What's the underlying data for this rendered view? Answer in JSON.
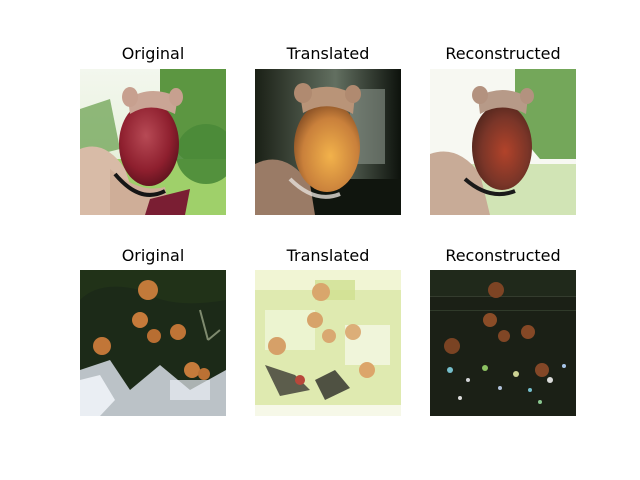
{
  "figure": {
    "rows": [
      {
        "titles": [
          "Original",
          "Translated",
          "Reconstructed"
        ],
        "images": [
          {
            "subject": "hand-holding-red-apple",
            "palette": {
              "sky": "#e9f1df",
              "trees": "#5f9a45",
              "grass": "#9fd06a",
              "apple": "#8e1f2e",
              "skin": "#d6b6a3"
            }
          },
          {
            "subject": "hand-holding-orange-apple-dark",
            "palette": {
              "bg": "#0c0f0b",
              "wall": "#6a7466",
              "apple": "#e08a3b",
              "skin": "#b78e72"
            }
          },
          {
            "subject": "hand-holding-red-apple-reconstructed",
            "palette": {
              "sky": "#f7f8f2",
              "trees": "#7aa95e",
              "grass": "#c4dba4",
              "apple": "#8a3a2b",
              "skin": "#bfa18d"
            }
          }
        ]
      },
      {
        "titles": [
          "Original",
          "Translated",
          "Reconstructed"
        ],
        "images": [
          {
            "subject": "orange-fruits-on-dark-tree",
            "palette": {
              "bg": "#1c2a18",
              "fruit": "#c57a3a",
              "sky": "#e8ecf3"
            }
          },
          {
            "subject": "faded-fruits-light-green",
            "palette": {
              "bg": "#dfeab0",
              "fruit": "#d7a36a",
              "dark": "#2a2b27"
            }
          },
          {
            "subject": "fruits-on-dark-noisy",
            "palette": {
              "bg": "#1b2016",
              "fruit": "#8a4c27",
              "noise": "#7fd0e0"
            }
          }
        ]
      }
    ]
  }
}
